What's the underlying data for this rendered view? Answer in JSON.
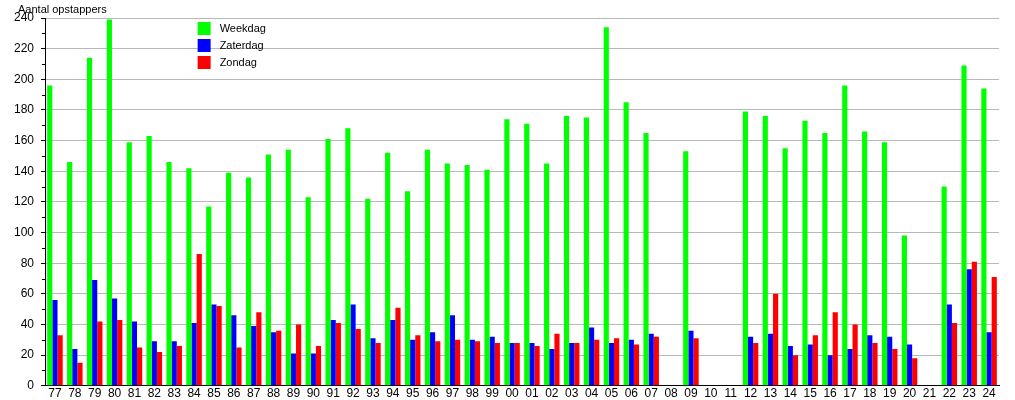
{
  "chart_data": {
    "type": "bar",
    "ylabel": "Aantal opstappers",
    "categories": [
      "77",
      "78",
      "79",
      "80",
      "81",
      "82",
      "83",
      "84",
      "85",
      "86",
      "87",
      "88",
      "89",
      "90",
      "91",
      "92",
      "93",
      "94",
      "95",
      "96",
      "97",
      "98",
      "99",
      "00",
      "01",
      "02",
      "03",
      "04",
      "05",
      "06",
      "07",
      "08",
      "09",
      "10",
      "11",
      "12",
      "13",
      "14",
      "15",
      "16",
      "17",
      "18",
      "19",
      "20",
      "21",
      "22",
      "23",
      "24"
    ],
    "series": [
      {
        "name": "Weekdag",
        "color": "#00ff00",
        "values": [
          196,
          146,
          214,
          239,
          159,
          163,
          146,
          142,
          117,
          139,
          136,
          151,
          154,
          123,
          161,
          168,
          122,
          152,
          127,
          154,
          145,
          144,
          141,
          174,
          171,
          145,
          176,
          175,
          234,
          185,
          165,
          null,
          153,
          null,
          null,
          179,
          176,
          155,
          173,
          165,
          196,
          166,
          159,
          98,
          null,
          130,
          209,
          194
        ]
      },
      {
        "name": "Zaterdag",
        "color": "#0000ff",
        "values": [
          56,
          24,
          69,
          57,
          42,
          29,
          29,
          41,
          53,
          46,
          39,
          35,
          21,
          21,
          43,
          53,
          31,
          43,
          30,
          35,
          46,
          30,
          32,
          28,
          28,
          24,
          28,
          38,
          28,
          30,
          34,
          null,
          36,
          null,
          null,
          32,
          34,
          26,
          27,
          20,
          24,
          33,
          32,
          27,
          null,
          53,
          76,
          35
        ]
      },
      {
        "name": "Zondag",
        "color": "#ff0000",
        "values": [
          33,
          15,
          42,
          43,
          25,
          22,
          26,
          86,
          52,
          25,
          48,
          36,
          40,
          26,
          41,
          37,
          28,
          51,
          33,
          29,
          30,
          29,
          28,
          28,
          26,
          34,
          28,
          30,
          31,
          27,
          32,
          null,
          31,
          null,
          null,
          28,
          60,
          20,
          33,
          48,
          40,
          28,
          24,
          18,
          null,
          41,
          81,
          71
        ]
      }
    ],
    "ylim": [
      0,
      240
    ],
    "yticks": [
      0,
      {
        "value": 10,
        "label": null
      },
      20,
      {
        "value": 30,
        "label": null
      },
      40,
      {
        "value": 50,
        "label": null
      },
      60,
      {
        "value": 70,
        "label": null
      },
      80,
      {
        "value": 90,
        "label": null
      },
      100,
      {
        "value": 110,
        "label": null
      },
      120,
      {
        "value": 130,
        "label": null
      },
      140,
      {
        "value": 150,
        "label": null
      },
      160,
      {
        "value": 170,
        "label": null
      },
      180,
      {
        "value": 190,
        "label": null
      },
      200,
      {
        "value": 210,
        "label": null
      },
      220,
      {
        "value": 230,
        "label": null
      },
      240
    ],
    "grid": "y",
    "legend": "top left"
  }
}
